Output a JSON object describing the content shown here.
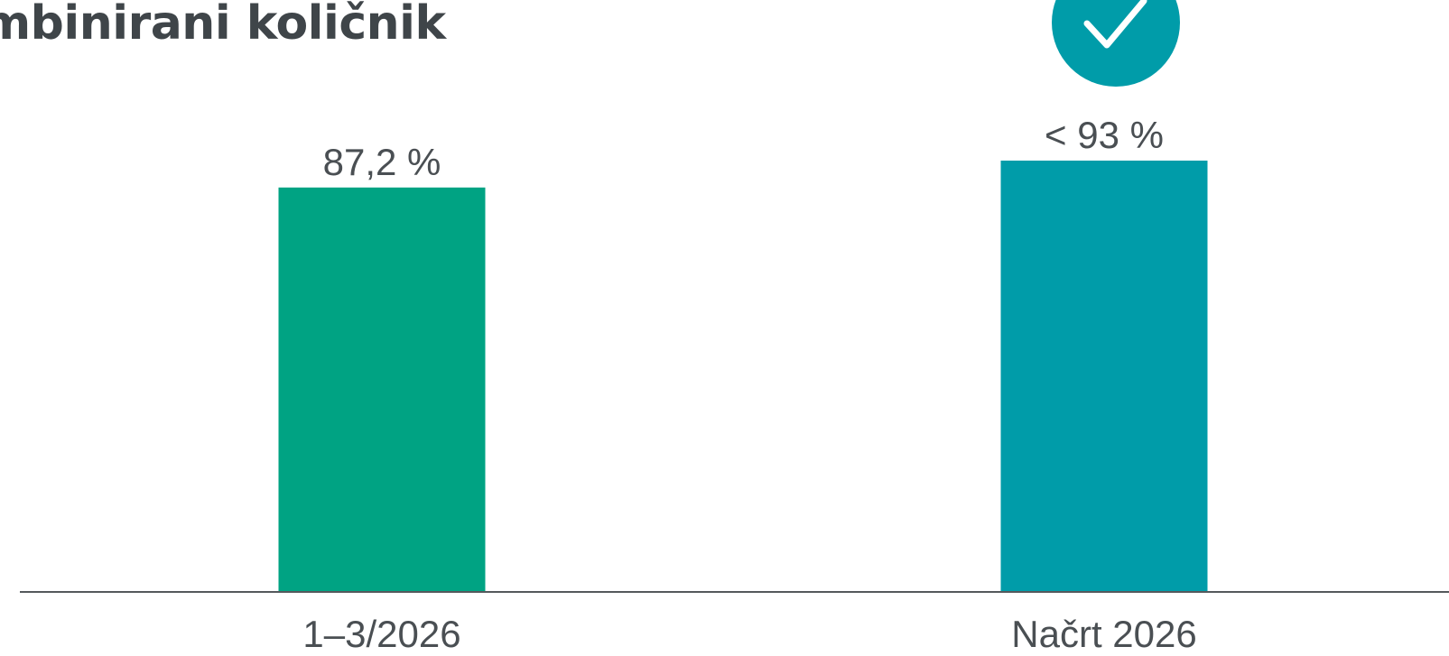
{
  "chart_data": {
    "type": "bar",
    "title": "mbinirani količnik",
    "categories": [
      "1–3/2026",
      "Načrt 2026"
    ],
    "values": [
      87.2,
      93
    ],
    "value_labels": [
      "87,2 %",
      "< 93 %"
    ],
    "colors": [
      "#00a383",
      "#009ca9"
    ],
    "ylim": [
      0,
      100
    ],
    "grid": false,
    "legend": "none",
    "annotations": [
      {
        "category": "Načrt 2026",
        "icon": "checkmark-circle-icon",
        "color": "#009ca9"
      }
    ]
  }
}
